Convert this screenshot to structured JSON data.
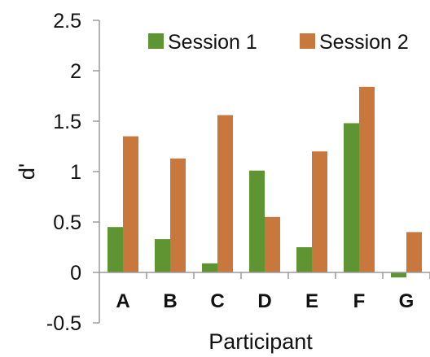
{
  "chart_data": {
    "type": "bar",
    "categories": [
      "A",
      "B",
      "C",
      "D",
      "E",
      "F",
      "G"
    ],
    "series": [
      {
        "name": "Session 1",
        "color": "#5f9433",
        "values": [
          0.45,
          0.33,
          0.09,
          1.01,
          0.25,
          1.48,
          -0.05
        ]
      },
      {
        "name": "Session 2",
        "color": "#c8783c",
        "values": [
          1.35,
          1.13,
          1.56,
          0.55,
          1.2,
          1.84,
          0.4
        ]
      }
    ],
    "title": "",
    "xlabel": "Participant",
    "ylabel": "d'",
    "ylim": [
      -0.5,
      2.5
    ],
    "yticks": [
      "-0.5",
      "0",
      "0.5",
      "1",
      "1.5",
      "2",
      "2.5"
    ],
    "grid": false,
    "legend_position": "top"
  }
}
